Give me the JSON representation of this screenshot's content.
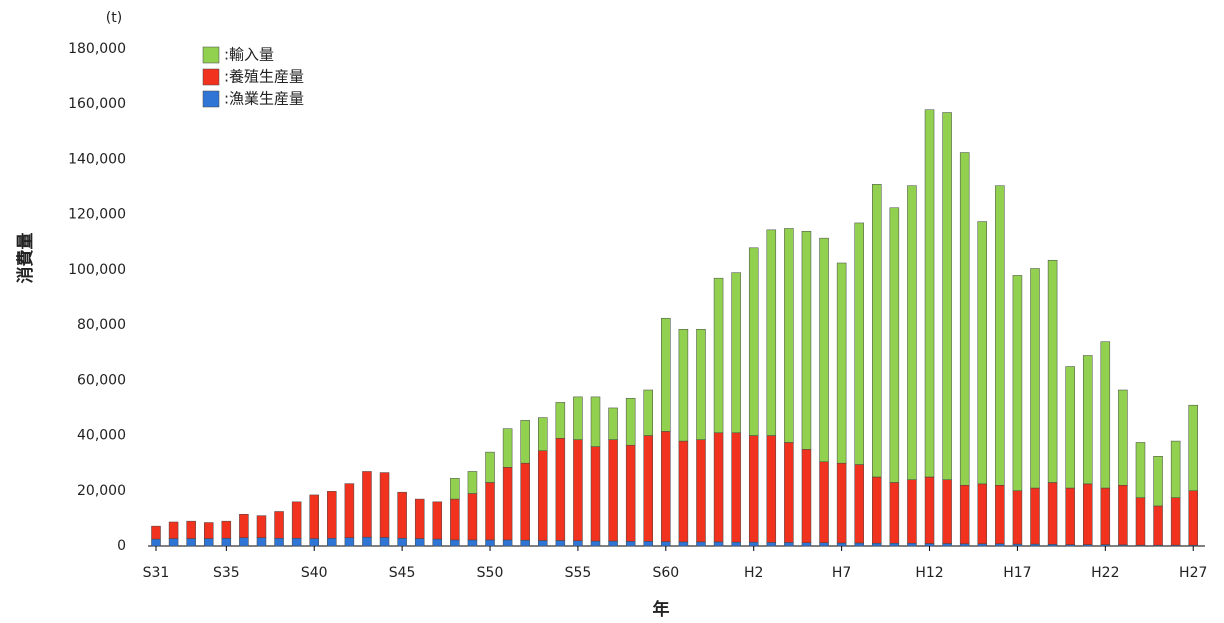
{
  "chart_data": {
    "type": "stacked_bar",
    "unit_label": "(t)",
    "y_label": "消費量",
    "x_label": "年",
    "categories": [
      "S31",
      null,
      null,
      null,
      "S35",
      null,
      null,
      null,
      null,
      "S40",
      null,
      null,
      null,
      null,
      "S45",
      null,
      null,
      null,
      null,
      "S50",
      null,
      null,
      null,
      null,
      "S55",
      null,
      null,
      null,
      null,
      "S60",
      null,
      null,
      null,
      null,
      "H2",
      null,
      null,
      null,
      null,
      "H7",
      null,
      null,
      null,
      null,
      "H12",
      null,
      null,
      null,
      null,
      "H17",
      null,
      null,
      null,
      null,
      "H22",
      null,
      null,
      null,
      null,
      "H27"
    ],
    "series": [
      {
        "name": ":輸入量",
        "color": "#92d050",
        "values": [
          0,
          0,
          0,
          0,
          0,
          0,
          0,
          0,
          0,
          0,
          0,
          0,
          0,
          0,
          0,
          0,
          0,
          7500,
          8000,
          11000,
          14000,
          15500,
          12000,
          13000,
          15500,
          18000,
          11500,
          17000,
          16500,
          41000,
          40500,
          40000,
          56000,
          58000,
          68000,
          74500,
          77500,
          79000,
          81000,
          72500,
          87500,
          106000,
          99500,
          106500,
          133000,
          133000,
          120500,
          95000,
          108500,
          78000,
          79500,
          80500,
          44000,
          46500,
          53000,
          34500,
          20000,
          18000,
          20500,
          31000
        ]
      },
      {
        "name": ":養殖生産量",
        "color": "#f0321e",
        "values": [
          4700,
          6000,
          6300,
          5800,
          6200,
          8500,
          8000,
          9700,
          13200,
          15800,
          17000,
          19600,
          23800,
          23500,
          16700,
          14300,
          13500,
          14800,
          16800,
          20800,
          26300,
          27900,
          32500,
          37000,
          36600,
          34200,
          36700,
          34800,
          38300,
          39900,
          36500,
          37000,
          39500,
          39600,
          38600,
          38700,
          36200,
          33800,
          29300,
          28900,
          28400,
          24000,
          22000,
          23000,
          24100,
          23100,
          21200,
          21700,
          21200,
          19300,
          20300,
          22400,
          20500,
          22000,
          20500,
          21600,
          17200,
          14200,
          17200,
          19700
        ]
      },
      {
        "name": ":漁業生産量",
        "color": "#2e75d6",
        "values": [
          2500,
          2700,
          2700,
          2700,
          2800,
          3000,
          3000,
          2800,
          2800,
          2700,
          2800,
          3000,
          3200,
          3100,
          2800,
          2700,
          2500,
          2200,
          2200,
          2200,
          2200,
          2100,
          2000,
          2000,
          1900,
          1800,
          1800,
          1700,
          1700,
          1600,
          1500,
          1500,
          1500,
          1400,
          1400,
          1300,
          1300,
          1200,
          1200,
          1100,
          1100,
          1000,
          1000,
          1000,
          900,
          900,
          800,
          800,
          800,
          700,
          700,
          600,
          500,
          500,
          500,
          400,
          300,
          300,
          300,
          300
        ]
      }
    ],
    "ylim": [
      0,
      180000
    ],
    "yticks": [
      0,
      {
        "value": 20000,
        "label": "20,000"
      },
      {
        "value": 40000,
        "label": "40,000"
      },
      {
        "value": 60000,
        "label": "60,000"
      },
      {
        "value": 80000,
        "label": "80,000"
      },
      {
        "value": 100000,
        "label": "100,000"
      },
      {
        "value": 120000,
        "label": "120,000"
      },
      {
        "value": 140000,
        "label": "140,000"
      },
      {
        "value": 160000,
        "label": "160,000"
      },
      {
        "value": 180000,
        "label": "180,000"
      }
    ],
    "legend": "top-left"
  }
}
